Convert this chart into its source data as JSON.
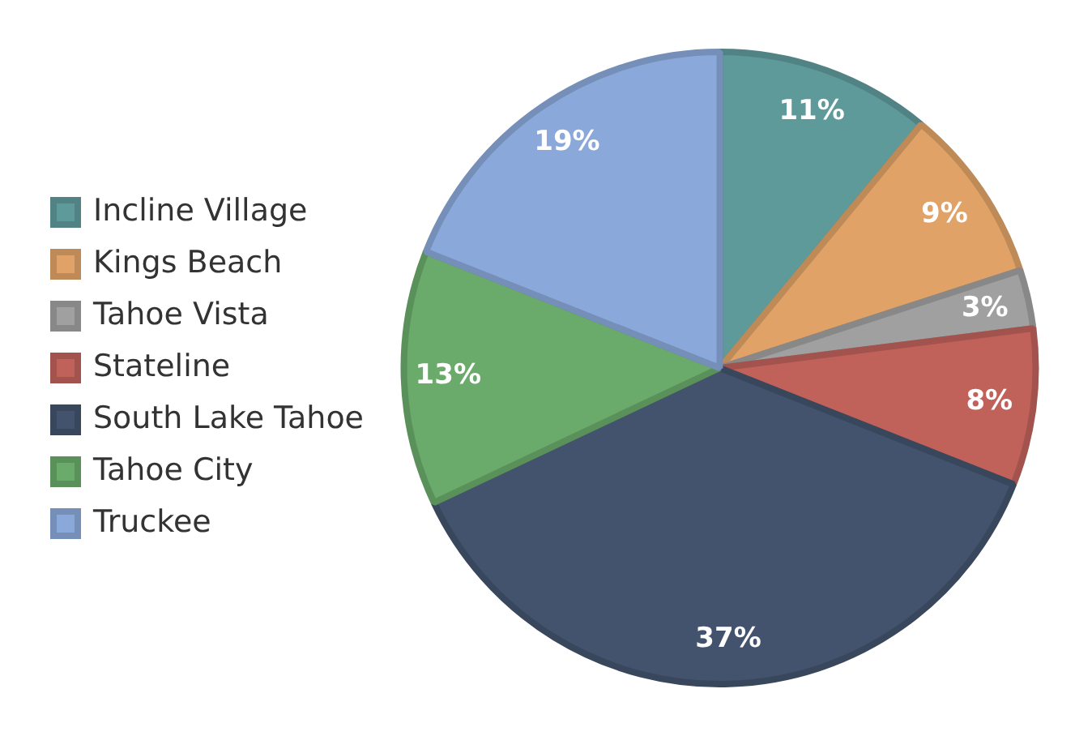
{
  "chart_data": {
    "type": "pie",
    "categories": [
      "Incline Village",
      "Kings Beach",
      "Tahoe Vista",
      "Stateline",
      "South Lake Tahoe",
      "Tahoe City",
      "Truckee"
    ],
    "values": [
      11,
      9,
      3,
      8,
      37,
      13,
      19
    ],
    "colors": [
      "#5f9a9b",
      "#e0a266",
      "#a0a0a0",
      "#c0625a",
      "#43536d",
      "#6aaa6a",
      "#8aa8da"
    ],
    "value_labels": [
      "11%",
      "9%",
      "3%",
      "8%",
      "37%",
      "13%",
      "19%"
    ],
    "legend": "left"
  }
}
